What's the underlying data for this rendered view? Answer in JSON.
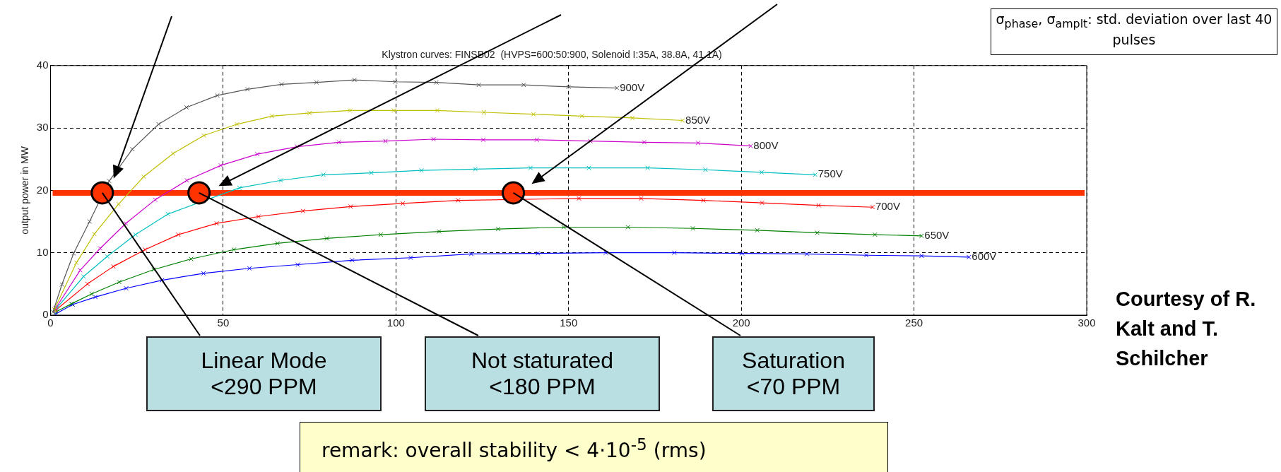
{
  "chart_data": {
    "type": "line",
    "title": "Klystron curves: FINSB02  (HVPS=600:50:900, Solenoid I:35A, 38.8A, 41.1A)",
    "ylabel": "output power in MW",
    "xlim": [
      0,
      300
    ],
    "xticks": [
      0,
      50,
      100,
      150,
      200,
      250,
      300
    ],
    "ylim": [
      0,
      40
    ],
    "yticks": [
      0,
      10,
      20,
      30,
      40
    ],
    "grid": true,
    "legend": false,
    "marker": "cross",
    "series": [
      {
        "name": "900V",
        "color": "#555555",
        "x": [
          0.7,
          3.3,
          6.7,
          11.3,
          17,
          23.7,
          31.3,
          39.4,
          48.3,
          57,
          66.9,
          77,
          88,
          99.8,
          111.7,
          124,
          137,
          150,
          164
        ],
        "values": [
          0.5,
          4.9,
          9.9,
          15,
          21.5,
          26.6,
          30.6,
          33.3,
          35.2,
          36.2,
          37,
          37.3,
          37.7,
          37.4,
          37.3,
          36.9,
          36.9,
          36.6,
          36.4
        ]
      },
      {
        "name": "850V",
        "color": "#bfbf00",
        "x": [
          1.1,
          7.5,
          12.7,
          19.7,
          27,
          35.5,
          44.4,
          54,
          64.1,
          75,
          86.7,
          99.4,
          112,
          125.5,
          139.8,
          153.9,
          168.5,
          183
        ],
        "values": [
          0.9,
          8.4,
          13,
          17.8,
          22.2,
          25.9,
          28.8,
          30.6,
          31.9,
          32.4,
          32.8,
          32.8,
          32.8,
          32.5,
          32.2,
          31.9,
          31.6,
          31.2
        ]
      },
      {
        "name": "800V",
        "color": "#cc00cc",
        "x": [
          1.5,
          8.6,
          14.4,
          21.8,
          30.3,
          39.5,
          49.3,
          59.9,
          71.4,
          83.5,
          97,
          110.9,
          125.3,
          140.8,
          156.3,
          171.9,
          187.5,
          202.7
        ],
        "values": [
          1.1,
          7.2,
          10.7,
          14.7,
          18.5,
          21.6,
          24,
          25.8,
          27,
          27.7,
          27.9,
          28.2,
          28.1,
          28.1,
          27.9,
          27.7,
          27.6,
          27.1
        ]
      },
      {
        "name": "750V",
        "color": "#00bfbf",
        "x": [
          1.9,
          9.6,
          16.4,
          24.6,
          34,
          54.7,
          66.7,
          79,
          92.9,
          107.4,
          123,
          139,
          155.9,
          172.9,
          189.6,
          205.9,
          221.4
        ],
        "values": [
          1.2,
          6.2,
          9.4,
          12.9,
          16.2,
          20.4,
          21.6,
          22.5,
          22.8,
          23.2,
          23.4,
          23.6,
          23.6,
          23.6,
          23.3,
          22.9,
          22.5
        ]
      },
      {
        "name": "700V",
        "color": "#ff0000",
        "x": [
          1.5,
          10.7,
          18.2,
          27.4,
          37,
          48.1,
          60.2,
          73.1,
          86.9,
          102,
          118,
          153,
          171,
          189,
          206,
          222.4,
          238
        ],
        "values": [
          0.8,
          5,
          7.8,
          10.5,
          12.9,
          14.7,
          15.8,
          16.7,
          17.4,
          17.9,
          18.4,
          18.7,
          18.7,
          18.4,
          18,
          17.6,
          17.3
        ]
      },
      {
        "name": "650V",
        "color": "#008000",
        "x": [
          1.5,
          6,
          11.9,
          19.9,
          29.9,
          40.7,
          53.1,
          65.7,
          80,
          95.6,
          112.5,
          129.6,
          148.6,
          167.2,
          186,
          204.6,
          222,
          238.7,
          252.2
        ],
        "values": [
          0.5,
          1.8,
          3.4,
          5.3,
          7.3,
          9,
          10.5,
          11.5,
          12.3,
          12.9,
          13.4,
          13.8,
          14.1,
          14.1,
          13.9,
          13.6,
          13.2,
          12.9,
          12.7
        ]
      },
      {
        "name": "600V",
        "color": "#0000ff",
        "x": [
          1.5,
          6.4,
          13,
          21.9,
          32.3,
          44.3,
          57.6,
          71.6,
          87.3,
          104.3,
          121.8,
          141.1,
          160.8,
          180.6,
          200.2,
          219,
          236.2,
          252.2,
          265.9
        ],
        "values": [
          0.2,
          1.7,
          2.9,
          4.3,
          5.6,
          6.7,
          7.5,
          8.1,
          8.8,
          9.2,
          9.8,
          9.9,
          10,
          10,
          9.9,
          9.8,
          9.6,
          9.5,
          9.3
        ]
      },
      {
        "type": "scatter",
        "color": "#ff3300",
        "marker": "circle",
        "x": [
          15,
          43,
          134
        ],
        "values": [
          19.6,
          19.6,
          19.6
        ]
      }
    ],
    "ref_lines": [
      {
        "axis": "y",
        "value": 19.6,
        "color": "#ff3300"
      }
    ],
    "annotations": [
      {
        "text": "Linear Mode <290 PPM",
        "x": 15,
        "y": 19.6
      },
      {
        "text": "Not staturated <180 PPM",
        "x": 43,
        "y": 19.6
      },
      {
        "text": "Saturation <70 PPM",
        "x": 134,
        "y": 19.6
      },
      "σ$_{phase}$, σ$_{amplt}$: std. deviation over last 40 pulses",
      "Courtesy of R. Kalt and T. Schilcher",
      "remark:    overall stability < 4·10$^{-5}$ (rms)"
    ]
  }
}
